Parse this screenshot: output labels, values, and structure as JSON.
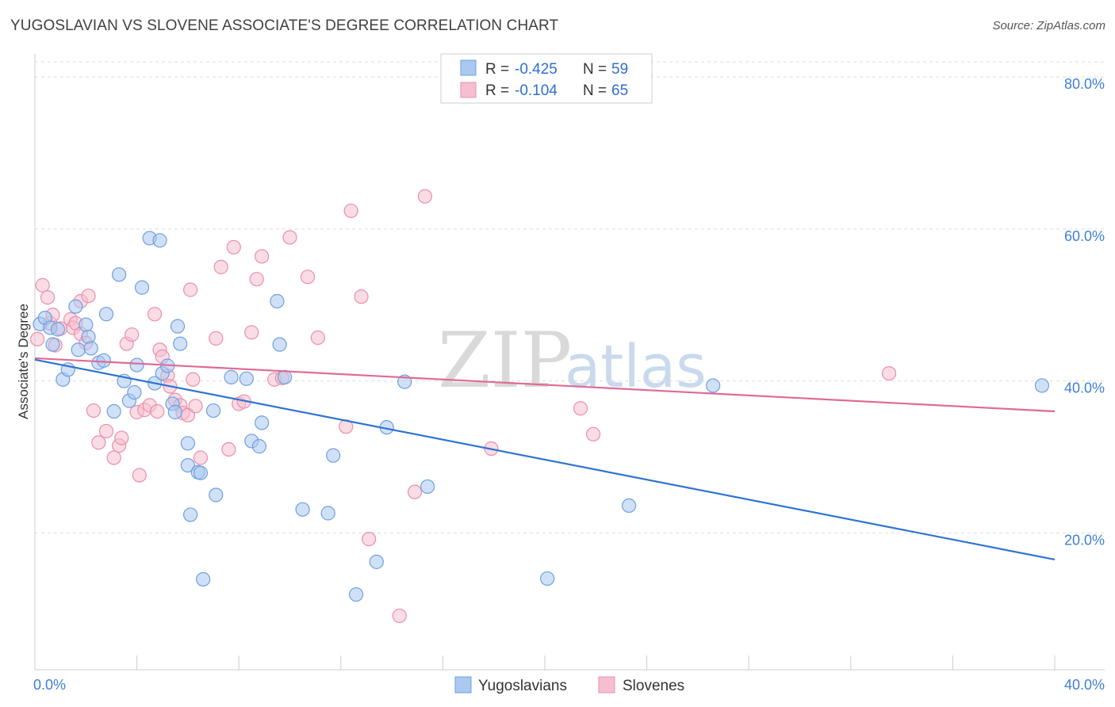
{
  "title": "YUGOSLAVIAN VS SLOVENE ASSOCIATE'S DEGREE CORRELATION CHART",
  "source": "Source: ZipAtlas.com",
  "watermark": {
    "zip": "ZIP",
    "atlas": "atlas"
  },
  "colors": {
    "blue_fill": "#aac8f0",
    "blue_stroke": "#6f9fe0",
    "blue_line": "#2f74d0",
    "pink_fill": "#f5bfd0",
    "pink_stroke": "#ea8fab",
    "pink_line": "#e06a95",
    "tick_text": "#3f7fd6",
    "grid": "#dddddd"
  },
  "legend": {
    "rows": [
      {
        "r_label": "R = ",
        "r_value": "-0.425",
        "n_label": "N = ",
        "n_value": "59"
      },
      {
        "r_label": "R = ",
        "r_value": "-0.104",
        "n_label": "N = ",
        "n_value": "65"
      }
    ]
  },
  "chart_data": {
    "type": "scatter",
    "title": "YUGOSLAVIAN VS SLOVENE ASSOCIATE'S DEGREE CORRELATION CHART",
    "xlabel": "",
    "ylabel": "Associate's Degree",
    "xlim": [
      0,
      40
    ],
    "ylim": [
      2,
      82
    ],
    "x_tick_labels": [
      "0.0%",
      "40.0%"
    ],
    "y_ticks": [
      20,
      40,
      60,
      80
    ],
    "y_tick_labels": [
      "20.0%",
      "40.0%",
      "60.0%",
      "80.0%"
    ],
    "grid": true,
    "legend_position": "top-center",
    "series": [
      {
        "name": "Yugoslavians",
        "r": -0.425,
        "n": 59,
        "trend": {
          "x": [
            0,
            40
          ],
          "y": [
            42.8,
            16.5
          ]
        },
        "points": [
          [
            0.2,
            47.5
          ],
          [
            0.4,
            48.3
          ],
          [
            0.6,
            47.0
          ],
          [
            0.7,
            44.8
          ],
          [
            0.9,
            46.8
          ],
          [
            1.1,
            40.2
          ],
          [
            1.3,
            41.5
          ],
          [
            1.6,
            49.8
          ],
          [
            1.7,
            44.1
          ],
          [
            2.0,
            47.4
          ],
          [
            2.1,
            45.8
          ],
          [
            2.2,
            44.3
          ],
          [
            2.5,
            42.4
          ],
          [
            2.7,
            42.7
          ],
          [
            2.8,
            48.8
          ],
          [
            3.1,
            36.0
          ],
          [
            3.3,
            54.0
          ],
          [
            3.5,
            40.0
          ],
          [
            3.7,
            37.4
          ],
          [
            3.9,
            38.5
          ],
          [
            4.0,
            42.1
          ],
          [
            4.2,
            52.3
          ],
          [
            4.5,
            58.8
          ],
          [
            4.7,
            39.7
          ],
          [
            4.9,
            58.5
          ],
          [
            5.0,
            41.0
          ],
          [
            5.2,
            42.0
          ],
          [
            5.4,
            37.0
          ],
          [
            5.5,
            35.9
          ],
          [
            5.6,
            47.2
          ],
          [
            5.7,
            44.9
          ],
          [
            6.0,
            31.8
          ],
          [
            6.0,
            28.9
          ],
          [
            6.1,
            22.4
          ],
          [
            6.4,
            28.0
          ],
          [
            6.5,
            27.9
          ],
          [
            6.6,
            13.9
          ],
          [
            7.0,
            36.1
          ],
          [
            7.1,
            25.0
          ],
          [
            7.7,
            40.5
          ],
          [
            8.3,
            40.3
          ],
          [
            8.5,
            32.1
          ],
          [
            8.8,
            31.4
          ],
          [
            8.9,
            34.5
          ],
          [
            9.5,
            50.5
          ],
          [
            9.6,
            44.8
          ],
          [
            9.8,
            40.5
          ],
          [
            10.5,
            23.1
          ],
          [
            11.5,
            22.6
          ],
          [
            11.7,
            30.2
          ],
          [
            12.6,
            11.9
          ],
          [
            13.4,
            16.2
          ],
          [
            13.8,
            33.9
          ],
          [
            14.5,
            39.9
          ],
          [
            15.4,
            26.1
          ],
          [
            20.1,
            14.0
          ],
          [
            23.3,
            23.6
          ],
          [
            26.6,
            39.4
          ],
          [
            39.5,
            39.4
          ]
        ]
      },
      {
        "name": "Slovenes",
        "r": -0.104,
        "n": 65,
        "trend": {
          "x": [
            0,
            40
          ],
          "y": [
            43.0,
            36.0
          ]
        },
        "points": [
          [
            0.3,
            52.6
          ],
          [
            0.5,
            51.0
          ],
          [
            0.6,
            47.6
          ],
          [
            0.7,
            48.7
          ],
          [
            0.8,
            44.7
          ],
          [
            1.0,
            46.9
          ],
          [
            1.4,
            48.1
          ],
          [
            1.5,
            47.0
          ],
          [
            1.6,
            47.6
          ],
          [
            1.8,
            46.2
          ],
          [
            1.8,
            50.5
          ],
          [
            2.0,
            45.0
          ],
          [
            2.1,
            51.2
          ],
          [
            2.3,
            36.1
          ],
          [
            2.5,
            31.9
          ],
          [
            2.8,
            33.4
          ],
          [
            3.1,
            29.9
          ],
          [
            3.3,
            31.5
          ],
          [
            3.4,
            32.5
          ],
          [
            3.6,
            44.9
          ],
          [
            3.8,
            46.1
          ],
          [
            4.0,
            35.9
          ],
          [
            4.1,
            27.6
          ],
          [
            4.3,
            36.2
          ],
          [
            4.5,
            36.8
          ],
          [
            4.7,
            48.8
          ],
          [
            4.8,
            36.0
          ],
          [
            4.9,
            44.1
          ],
          [
            5.0,
            43.2
          ],
          [
            5.2,
            40.7
          ],
          [
            5.3,
            39.3
          ],
          [
            5.5,
            37.5
          ],
          [
            5.7,
            36.8
          ],
          [
            5.8,
            35.8
          ],
          [
            6.0,
            35.5
          ],
          [
            6.1,
            52.0
          ],
          [
            6.2,
            40.2
          ],
          [
            6.3,
            36.7
          ],
          [
            6.5,
            29.9
          ],
          [
            7.1,
            45.6
          ],
          [
            7.3,
            55.0
          ],
          [
            7.6,
            31.0
          ],
          [
            7.8,
            57.6
          ],
          [
            8.0,
            37.0
          ],
          [
            8.2,
            37.3
          ],
          [
            8.5,
            46.4
          ],
          [
            8.7,
            53.4
          ],
          [
            8.9,
            56.4
          ],
          [
            9.4,
            40.2
          ],
          [
            9.7,
            40.4
          ],
          [
            10.0,
            58.9
          ],
          [
            10.7,
            53.7
          ],
          [
            11.1,
            45.7
          ],
          [
            12.2,
            34.0
          ],
          [
            12.4,
            62.4
          ],
          [
            12.8,
            51.1
          ],
          [
            13.1,
            19.2
          ],
          [
            14.3,
            9.1
          ],
          [
            14.9,
            25.4
          ],
          [
            15.3,
            64.3
          ],
          [
            17.9,
            31.1
          ],
          [
            21.4,
            36.4
          ],
          [
            21.9,
            33.0
          ],
          [
            33.5,
            41.0
          ],
          [
            0.1,
            45.5
          ]
        ]
      }
    ]
  }
}
